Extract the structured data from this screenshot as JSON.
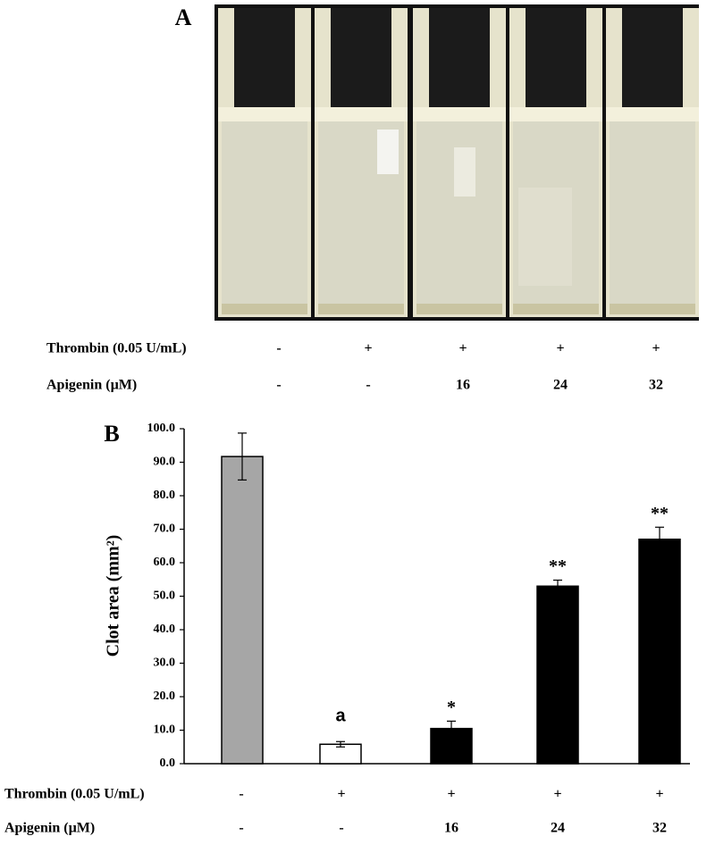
{
  "panel_a": {
    "label": "A",
    "rows": [
      {
        "label": "Thrombin  (0.05 U/mL)",
        "cells": [
          "-",
          "+",
          "+",
          "+",
          "+"
        ]
      },
      {
        "label": "Apigenin (µM)",
        "cells": [
          "-",
          "-",
          "16",
          "24",
          "32"
        ]
      }
    ]
  },
  "chart_data": {
    "type": "bar",
    "panel_label": "B",
    "y_label": "Clot area (mm²)",
    "values": [
      91.7,
      5.8,
      10.5,
      53.0,
      67.0
    ],
    "errors": [
      7.0,
      0.8,
      2.2,
      1.8,
      3.6
    ],
    "colors": [
      "#a6a6a6",
      "#ffffff",
      "#000000",
      "#000000",
      "#000000"
    ],
    "annotations": [
      null,
      "a",
      "*",
      "**",
      "**"
    ],
    "ylim": [
      0,
      100
    ],
    "yticks": [
      {
        "value": 0,
        "label": "0.0"
      },
      {
        "value": 10,
        "label": "10.0"
      },
      {
        "value": 20,
        "label": "20.0"
      },
      {
        "value": 30,
        "label": "30.0"
      },
      {
        "value": 40,
        "label": "40.0"
      },
      {
        "value": 50,
        "label": "50.0"
      },
      {
        "value": 60,
        "label": "60.0"
      },
      {
        "value": 70,
        "label": "70.0"
      },
      {
        "value": 80,
        "label": "80.0"
      },
      {
        "value": 90,
        "label": "90.0"
      },
      {
        "value": 100,
        "label": "100.0"
      }
    ],
    "rows": [
      {
        "label": "Thrombin  (0.05 U/mL)",
        "cells": [
          "-",
          "+",
          "+",
          "+",
          "+"
        ]
      },
      {
        "label": "Apigenin (µM)",
        "cells": [
          "-",
          "-",
          "16",
          "24",
          "32"
        ]
      }
    ]
  }
}
